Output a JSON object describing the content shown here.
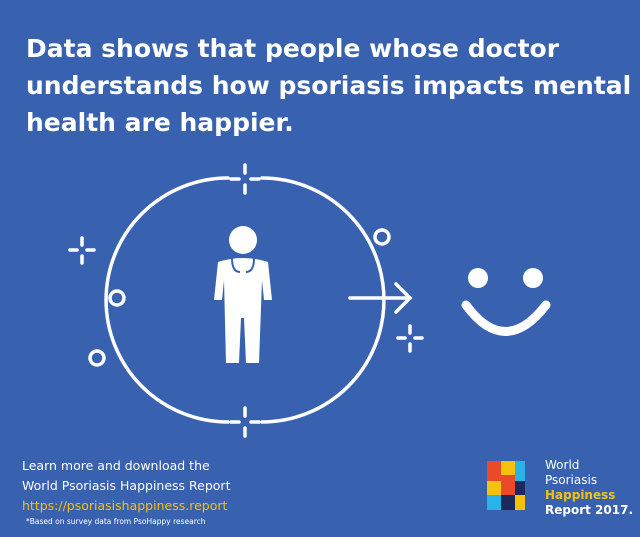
{
  "headline": [
    "Data shows that people whose doctor",
    "understands how psoriasis impacts mental",
    "health are happier."
  ],
  "footer": {
    "lines": [
      "Learn more and download the",
      "World Psoriasis Happiness Report"
    ],
    "link": "https://psoriasishappiness.report",
    "footnote": "*Based on survey data from PsoHappy research"
  },
  "logo": {
    "lines": [
      "World",
      "Psoriasis",
      "Happiness",
      "Report 2017."
    ]
  }
}
